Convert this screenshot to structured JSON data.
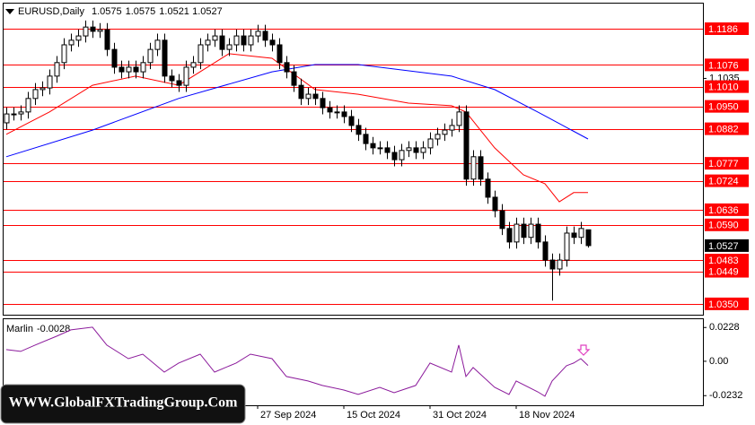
{
  "chart_data": [
    {
      "type": "candlestick",
      "title": "EURUSD,Daily",
      "categories": [
        null,
        null,
        null,
        null,
        null,
        null,
        null,
        null,
        null,
        null,
        null,
        null,
        null,
        null,
        null,
        null,
        null,
        null,
        null,
        null,
        null,
        null,
        null,
        null,
        null,
        null,
        null,
        null,
        null,
        null,
        null,
        null,
        null,
        null,
        null,
        "27 Sep 2024",
        null,
        null,
        null,
        null,
        null,
        null,
        null,
        null,
        null,
        null,
        null,
        "15 Oct 2024",
        null,
        null,
        null,
        null,
        null,
        null,
        null,
        null,
        null,
        null,
        null,
        "31 Oct 2024",
        null,
        null,
        null,
        null,
        null,
        null,
        null,
        null,
        null,
        null,
        null,
        "18 Nov 2024",
        null,
        null,
        null,
        null,
        null,
        null,
        null,
        null,
        null,
        null
      ],
      "open": [
        1.09,
        1.0927,
        1.0927,
        1.0933,
        1.0974,
        1.1001,
        1.1006,
        1.1042,
        1.1083,
        1.1137,
        1.1151,
        1.1164,
        1.1191,
        1.1178,
        1.1183,
        1.1123,
        1.1069,
        1.1055,
        1.1069,
        1.1055,
        1.1083,
        1.1123,
        1.1151,
        1.1042,
        1.1028,
        1.1014,
        1.1069,
        1.1083,
        1.1137,
        1.1151,
        1.1164,
        1.1123,
        1.1137,
        1.1164,
        1.1137,
        1.1164,
        1.1178,
        1.1151,
        1.1137,
        1.1083,
        1.1055,
        1.1014,
        1.0974,
        1.0987,
        1.0974,
        1.0946,
        1.0933,
        1.0933,
        1.0919,
        1.0892,
        1.0865,
        1.0837,
        1.0824,
        1.0824,
        1.081,
        1.0788,
        1.0816,
        1.0824,
        1.081,
        1.0824,
        1.0851,
        1.0865,
        1.0878,
        1.0892,
        1.0933,
        1.0729,
        1.0797,
        1.0729,
        1.0674,
        1.0633,
        1.0579,
        1.0538,
        1.0592,
        1.0552,
        1.0592,
        1.0538,
        1.0483,
        1.0456,
        1.0483,
        1.0565,
        1.0552,
        1.0575
      ],
      "high": [
        1.0947,
        1.0947,
        1.0953,
        1.0994,
        1.1021,
        1.1026,
        1.1062,
        1.1103,
        1.1157,
        1.1171,
        1.1184,
        1.1211,
        1.1211,
        1.1203,
        1.1203,
        1.1143,
        1.1089,
        1.1089,
        1.1089,
        1.1103,
        1.1143,
        1.1171,
        1.1171,
        1.1062,
        1.1048,
        1.1089,
        1.1103,
        1.1157,
        1.1171,
        1.1184,
        1.1184,
        1.1157,
        1.1184,
        1.1184,
        1.1184,
        1.1198,
        1.1198,
        1.1171,
        1.1157,
        1.1103,
        1.1075,
        1.1034,
        1.1007,
        1.1007,
        1.0994,
        1.0966,
        1.0953,
        1.0953,
        1.0939,
        1.0912,
        1.0885,
        1.0857,
        1.0844,
        1.0844,
        1.083,
        1.0836,
        1.0844,
        1.0844,
        1.0844,
        1.0871,
        1.0885,
        1.0898,
        1.0912,
        1.0953,
        1.0953,
        1.0817,
        1.0817,
        1.0749,
        1.0694,
        1.0653,
        1.0599,
        1.0612,
        1.0612,
        1.0612,
        1.0612,
        1.0558,
        1.0503,
        1.0503,
        1.0585,
        1.0585,
        1.0599,
        1.0575
      ],
      "low": [
        1.088,
        1.0907,
        1.0907,
        1.0913,
        1.0954,
        1.0981,
        1.0986,
        1.1022,
        1.1063,
        1.1117,
        1.1131,
        1.1144,
        1.1158,
        1.1158,
        1.1103,
        1.1049,
        1.1035,
        1.1035,
        1.1035,
        1.1035,
        1.1063,
        1.1103,
        1.1022,
        1.1008,
        1.0994,
        1.0994,
        1.1049,
        1.1063,
        1.1117,
        1.1131,
        1.1103,
        1.1103,
        1.1117,
        1.1117,
        1.1117,
        1.1144,
        1.1131,
        1.1117,
        1.1063,
        1.1035,
        1.0994,
        1.0954,
        1.0954,
        1.0954,
        1.0926,
        1.0913,
        1.0913,
        1.0899,
        1.0872,
        1.0845,
        1.0817,
        1.0804,
        1.0804,
        1.079,
        1.0768,
        1.0768,
        1.0796,
        1.079,
        1.079,
        1.0804,
        1.0831,
        1.0845,
        1.0858,
        1.0872,
        1.0709,
        1.0709,
        1.0709,
        1.0654,
        1.0613,
        1.0559,
        1.0518,
        1.0518,
        1.0532,
        1.0532,
        1.0518,
        1.0463,
        1.036,
        1.0436,
        1.0463,
        1.0532,
        1.0532,
        1.0521
      ],
      "close": [
        1.0927,
        1.0927,
        1.0933,
        1.0974,
        1.1001,
        1.1006,
        1.1042,
        1.1083,
        1.1137,
        1.1151,
        1.1164,
        1.1191,
        1.1178,
        1.1183,
        1.1123,
        1.1069,
        1.1055,
        1.1069,
        1.1055,
        1.1083,
        1.1123,
        1.1151,
        1.1042,
        1.1028,
        1.1014,
        1.1069,
        1.1083,
        1.1137,
        1.1151,
        1.1164,
        1.1123,
        1.1137,
        1.1164,
        1.1137,
        1.1164,
        1.1178,
        1.1151,
        1.1137,
        1.1083,
        1.1055,
        1.1014,
        1.0974,
        1.0987,
        1.0974,
        1.0946,
        1.0933,
        1.0933,
        1.0919,
        1.0892,
        1.0865,
        1.0837,
        1.0824,
        1.0824,
        1.081,
        1.0788,
        1.0816,
        1.0824,
        1.081,
        1.0824,
        1.0851,
        1.0865,
        1.0878,
        1.0892,
        1.0933,
        1.0729,
        1.0797,
        1.0729,
        1.0674,
        1.0633,
        1.0579,
        1.0538,
        1.0592,
        1.0552,
        1.0592,
        1.0538,
        1.0483,
        1.0456,
        1.0483,
        1.0565,
        1.0552,
        1.0579,
        1.0527
      ],
      "lines": [
        {
          "color": "#0000ff",
          "x": [
            0,
            12,
            24,
            37,
            43,
            49,
            62,
            68,
            74,
            81
          ],
          "values": [
            1.0797,
            1.0878,
            1.0974,
            1.1055,
            1.1077,
            1.1077,
            1.1042,
            1.1001,
            1.0933,
            1.0851
          ]
        },
        {
          "color": "#ff0000",
          "x": [
            0,
            6,
            12,
            18,
            24,
            31,
            37,
            43,
            49,
            56,
            62,
            64,
            68,
            72,
            75,
            77,
            79,
            81
          ],
          "values": [
            1.0865,
            1.0933,
            1.1014,
            1.1042,
            1.1014,
            1.111,
            1.1096,
            1.1001,
            1.0987,
            1.096,
            1.0952,
            1.0933,
            1.0824,
            1.0742,
            1.0715,
            1.066,
            1.0688,
            1.0688
          ]
        }
      ],
      "level_color": "#ff0000",
      "levels": [
        1.1186,
        1.1076,
        {
          "value": 1.101,
          "label": "1.1010"
        },
        {
          "value": 1.095,
          "label": "1.0950"
        },
        1.0882,
        1.0777,
        1.0724,
        1.0636,
        {
          "value": 1.059,
          "label": "1.0590"
        },
        1.0483,
        1.0449,
        {
          "value": 1.035,
          "label": "1.0350"
        }
      ],
      "ylim": [
        1.0317,
        1.1265
      ],
      "yticks": [
        1.1035
      ]
    },
    {
      "type": "line",
      "title": "Marlin",
      "color": "#8b1a9b",
      "x": [
        0,
        2,
        4,
        7,
        9,
        12,
        14,
        17,
        19,
        22,
        24,
        27,
        29,
        32,
        34,
        37,
        39,
        42,
        44,
        47,
        49,
        52,
        54,
        57,
        59,
        62,
        63,
        64,
        65,
        68,
        70,
        71,
        74,
        75,
        76,
        78,
        79,
        80,
        81
      ],
      "values": [
        0.0079,
        0.0067,
        0.0109,
        0.0169,
        0.0212,
        0.023,
        0.0109,
        0.0018,
        0.0048,
        -0.0073,
        -0.0012,
        0.0048,
        -0.0073,
        -0.0012,
        0.0048,
        0.0018,
        -0.0103,
        -0.0133,
        -0.0163,
        -0.0194,
        -0.0224,
        -0.0176,
        -0.0212,
        -0.0163,
        -0.0012,
        -0.0073,
        0.0109,
        -0.0103,
        -0.0042,
        -0.0176,
        -0.0224,
        -0.0133,
        -0.0206,
        -0.0236,
        -0.0133,
        -0.003,
        -0.0012,
        0.0018,
        -0.0028
      ],
      "ylim": [
        -0.0297,
        0.0284
      ],
      "yticks": [
        0.0228,
        {
          "value": 0,
          "label": "0.00"
        },
        -0.0232
      ]
    }
  ],
  "watermark": "WWW.GlobalFXTradingGroup.Com"
}
